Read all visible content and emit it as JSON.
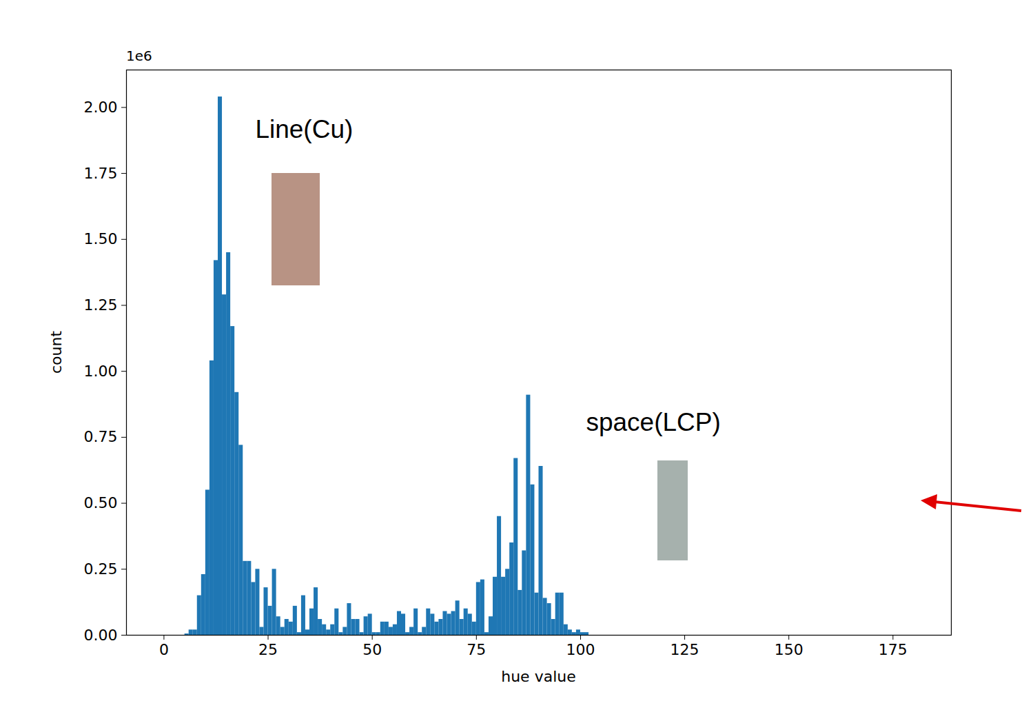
{
  "chart_data": {
    "type": "histogram",
    "x_label": "hue value",
    "y_label": "count",
    "color": "#1f77b4",
    "xlim": [
      -9,
      189
    ],
    "xticks": [
      0,
      25,
      50,
      75,
      100,
      125,
      150,
      175
    ],
    "ylim": [
      0,
      2.142
    ],
    "yticks": [
      {
        "value": 0,
        "label": "0.00"
      },
      0.25,
      {
        "value": 0.5,
        "label": "0.50"
      },
      0.75,
      {
        "value": 1,
        "label": "1.00"
      },
      1.25,
      {
        "value": 1.5,
        "label": "1.50"
      },
      1.75,
      {
        "value": 2,
        "label": "2.00"
      }
    ],
    "annotations": [
      {
        "text": "1e6",
        "x": -9,
        "y": 2.19
      },
      {
        "text": "Line(Cu)",
        "x": 22,
        "y": 1.91
      },
      {
        "text": "space(LCP)",
        "x": 101.4,
        "y": 0.8
      }
    ],
    "bins": [
      0,
      1,
      2,
      3,
      4,
      5,
      6,
      7,
      8,
      9,
      10,
      11,
      12,
      13,
      14,
      15,
      16,
      17,
      18,
      19,
      20,
      21,
      22,
      23,
      24,
      25,
      26,
      27,
      28,
      29,
      30,
      31,
      32,
      33,
      34,
      35,
      36,
      37,
      38,
      39,
      40,
      41,
      42,
      43,
      44,
      45,
      46,
      47,
      48,
      49,
      50,
      51,
      52,
      53,
      54,
      55,
      56,
      57,
      58,
      59,
      60,
      61,
      62,
      63,
      64,
      65,
      66,
      67,
      68,
      69,
      70,
      71,
      72,
      73,
      74,
      75,
      76,
      77,
      78,
      79,
      80,
      81,
      82,
      83,
      84,
      85,
      86,
      87,
      88,
      89,
      90,
      91,
      92,
      93,
      94,
      95,
      96,
      97,
      98,
      99,
      100,
      101,
      102,
      103,
      104,
      105,
      106,
      107,
      108,
      109,
      110,
      111,
      112,
      113,
      114,
      115,
      116,
      117,
      118,
      119,
      120,
      121,
      122,
      123,
      124,
      125,
      126,
      127,
      128,
      129,
      130,
      131,
      132,
      133,
      134,
      135,
      136,
      137,
      138,
      139,
      140,
      141,
      142,
      143,
      144,
      145,
      146,
      147,
      148,
      149,
      150,
      151,
      152,
      153,
      154,
      155,
      156,
      157,
      158,
      159,
      160,
      161,
      162,
      163,
      164,
      165,
      166,
      167,
      168,
      169,
      170,
      171,
      172,
      173,
      174,
      175,
      176,
      177,
      178,
      179,
      180
    ],
    "values": [
      0,
      0,
      0,
      0,
      0,
      0.005,
      0.02,
      0.02,
      0.15,
      0.23,
      0.55,
      1.04,
      1.42,
      2.04,
      1.29,
      1.45,
      1.17,
      0.92,
      0.72,
      0.28,
      0.28,
      0.2,
      0.25,
      0.03,
      0.18,
      0.11,
      0.25,
      0.07,
      0.03,
      0.06,
      0.05,
      0.11,
      0.01,
      0.15,
      0.02,
      0.1,
      0.18,
      0.06,
      0.04,
      0.02,
      0.04,
      0.1,
      0.01,
      0.03,
      0.12,
      0.06,
      0.06,
      0.01,
      0.07,
      0.08,
      0.01,
      0.01,
      0.05,
      0.05,
      0.03,
      0.04,
      0.09,
      0.08,
      0.01,
      0.03,
      0.1,
      0.01,
      0.03,
      0.1,
      0.08,
      0.05,
      0.06,
      0.09,
      0.08,
      0.09,
      0.13,
      0.06,
      0.1,
      0.08,
      0.05,
      0.2,
      0.21,
      0.01,
      0.07,
      0.22,
      0.45,
      0.22,
      0.25,
      0.35,
      0.67,
      0.17,
      0.32,
      0.91,
      0.57,
      0.16,
      0.64,
      0.14,
      0.12,
      0.06,
      0.16,
      0.16,
      0.04,
      0.02,
      0.01,
      0.02,
      0.01,
      0.01,
      0,
      0,
      0,
      0,
      0,
      0,
      0,
      0,
      0,
      0,
      0,
      0,
      0,
      0,
      0,
      0,
      0,
      0,
      0,
      0,
      0,
      0,
      0,
      0,
      0,
      0,
      0,
      0,
      0,
      0,
      0,
      0,
      0,
      0,
      0,
      0,
      0,
      0,
      0,
      0,
      0,
      0,
      0,
      0,
      0,
      0,
      0,
      0,
      0,
      0,
      0,
      0,
      0,
      0,
      0,
      0,
      0,
      0,
      0,
      0,
      0,
      0,
      0,
      0,
      0,
      0,
      0,
      0,
      0,
      0,
      0,
      0,
      0,
      0,
      0,
      0,
      0,
      0
    ]
  }
}
